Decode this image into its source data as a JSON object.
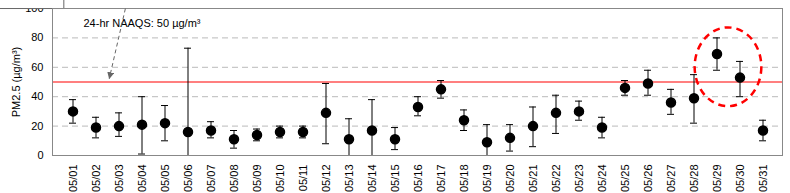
{
  "chart_data": {
    "type": "scatter",
    "y_label": "PM2.5 (µg/m³)",
    "categories": [
      "05/01",
      "05/02",
      "05/03",
      "05/04",
      "05/05",
      "05/06",
      "05/07",
      "05/08",
      "05/09",
      "05/10",
      "05/11",
      "05/12",
      "05/13",
      "05/14",
      "05/15",
      "05/16",
      "05/17",
      "05/18",
      "05/19",
      "05/20",
      "05/21",
      "05/22",
      "05/23",
      "05/24",
      "05/25",
      "05/26",
      "05/27",
      "05/28",
      "05/29",
      "05/30",
      "05/31"
    ],
    "values": [
      30,
      19,
      20,
      21,
      22,
      16,
      17,
      11,
      14,
      16,
      16,
      29,
      11,
      17,
      11,
      33,
      45,
      24,
      9,
      12,
      20,
      29,
      30,
      19,
      46,
      49,
      36,
      39,
      69,
      53,
      17
    ],
    "error_low": [
      22,
      12,
      13,
      1,
      10,
      0,
      12,
      5,
      10,
      12,
      12,
      8,
      0,
      0,
      4,
      27,
      39,
      17,
      0,
      3,
      6,
      15,
      24,
      12,
      41,
      41,
      28,
      22,
      58,
      40,
      10
    ],
    "error_high": [
      38,
      26,
      29,
      40,
      34,
      73,
      23,
      17,
      18,
      20,
      20,
      49,
      25,
      38,
      19,
      40,
      51,
      31,
      21,
      21,
      33,
      41,
      37,
      26,
      51,
      58,
      45,
      55,
      80,
      64,
      24
    ],
    "color": "#000000",
    "marker": "circle",
    "threshold": {
      "value": 50,
      "label": "24-hr NAAQS: 50 µg/m³",
      "color": "#ff0000"
    },
    "ylim": [
      0,
      100
    ],
    "yticks": [
      0,
      20,
      40,
      60,
      80,
      100
    ],
    "grid": true
  }
}
